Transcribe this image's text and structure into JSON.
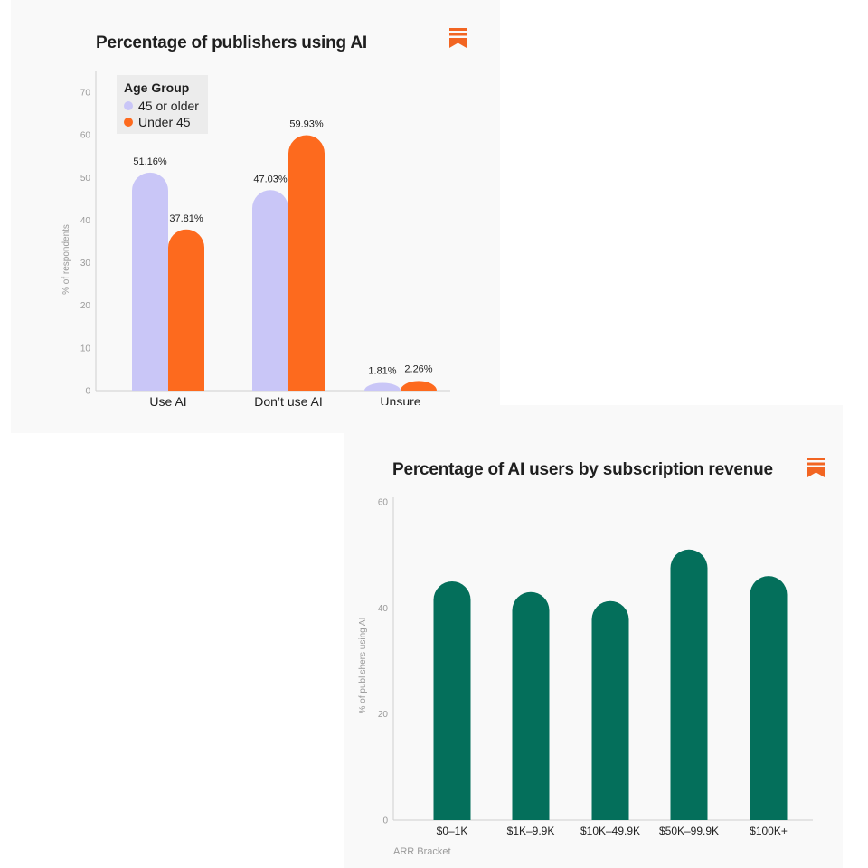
{
  "colors": {
    "older": "#c9c6f7",
    "under": "#fd6a1e",
    "green": "#046f5b",
    "brand": "#f26522",
    "axis": "#cfcfcf",
    "text": "#1f1f1f"
  },
  "chart_data": [
    {
      "type": "bar",
      "title": "Percentage of publishers using AI",
      "ylabel": "% of respondents",
      "xlabel": "",
      "ylim": [
        0,
        70
      ],
      "yticks": [
        "0",
        "10",
        "20",
        "30",
        "40",
        "50",
        "60",
        "70"
      ],
      "categories": [
        "Use AI",
        "Don’t use AI",
        "Unsure"
      ],
      "legend": {
        "title": "Age Group",
        "placement": "top-left"
      },
      "series": [
        {
          "name": "45 or older",
          "values": [
            51.16,
            47.03,
            1.81
          ],
          "labels": [
            "51.16%",
            "47.03%",
            "1.81%"
          ]
        },
        {
          "name": "Under 45",
          "values": [
            37.81,
            59.93,
            2.26
          ],
          "labels": [
            "37.81%",
            "59.93%",
            "2.26%"
          ]
        }
      ],
      "grid": false
    },
    {
      "type": "bar",
      "title": "Percentage of AI users by subscription revenue",
      "ylabel": "% of publishers using AI",
      "xlabel": "ARR Bracket",
      "ylim": [
        0,
        60
      ],
      "yticks": [
        "0",
        "20",
        "40",
        "60"
      ],
      "categories": [
        "$0–1K",
        "$1K–9.9K",
        "$10K–49.9K",
        "$50K–99.9K",
        "$100K+"
      ],
      "values": [
        45.0,
        43.0,
        41.3,
        51.0,
        46.0
      ],
      "grid": false
    }
  ]
}
